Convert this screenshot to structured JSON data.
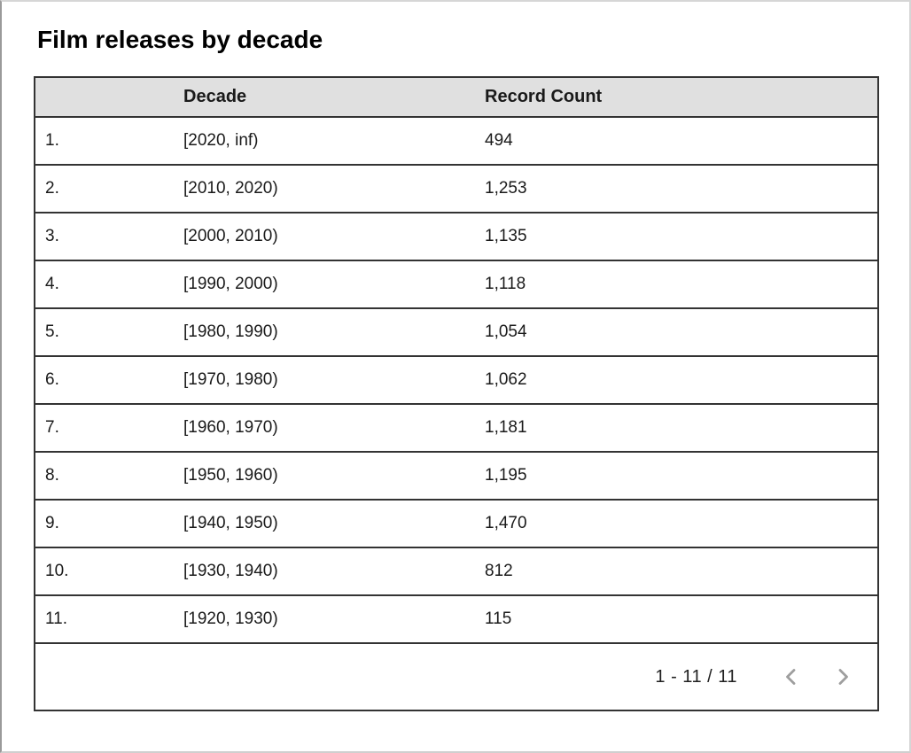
{
  "window": {
    "title": "Film releases by decade"
  },
  "table": {
    "header": {
      "index_label": "",
      "decade_label": "Decade",
      "count_label": "Record Count"
    },
    "rows": [
      {
        "num": "1.",
        "decade": "[2020, inf)",
        "count": "494"
      },
      {
        "num": "2.",
        "decade": "[2010, 2020)",
        "count": "1,253"
      },
      {
        "num": "3.",
        "decade": "[2000, 2010)",
        "count": "1,135"
      },
      {
        "num": "4.",
        "decade": "[1990, 2000)",
        "count": "1,118"
      },
      {
        "num": "5.",
        "decade": "[1980, 1990)",
        "count": "1,054"
      },
      {
        "num": "6.",
        "decade": "[1970, 1980)",
        "count": "1,062"
      },
      {
        "num": "7.",
        "decade": "[1960, 1970)",
        "count": "1,181"
      },
      {
        "num": "8.",
        "decade": "[1950, 1960)",
        "count": "1,195"
      },
      {
        "num": "9.",
        "decade": "[1940, 1950)",
        "count": "1,470"
      },
      {
        "num": "10.",
        "decade": "[1930, 1940)",
        "count": "812"
      },
      {
        "num": "11.",
        "decade": "[1920, 1930)",
        "count": "115"
      }
    ]
  },
  "chart_data": {
    "type": "table",
    "title": "Film releases by decade",
    "columns": [
      "Decade",
      "Record Count"
    ],
    "categories": [
      "[2020, inf)",
      "[2010, 2020)",
      "[2000, 2010)",
      "[1990, 2000)",
      "[1980, 1990)",
      "[1970, 1980)",
      "[1960, 1970)",
      "[1950, 1960)",
      "[1940, 1950)",
      "[1930, 1940)",
      "[1920, 1930)"
    ],
    "values": [
      494,
      1253,
      1135,
      1118,
      1054,
      1062,
      1181,
      1195,
      1470,
      812,
      115
    ]
  },
  "pagination": {
    "range_label": "1 - 11 / 11",
    "prev_icon": "chevron-left",
    "next_icon": "chevron-right"
  },
  "colors": {
    "header_bg": "#e0e0e0",
    "border": "#333333",
    "chevron": "#9e9e9e",
    "text": "#1a1a1a"
  }
}
